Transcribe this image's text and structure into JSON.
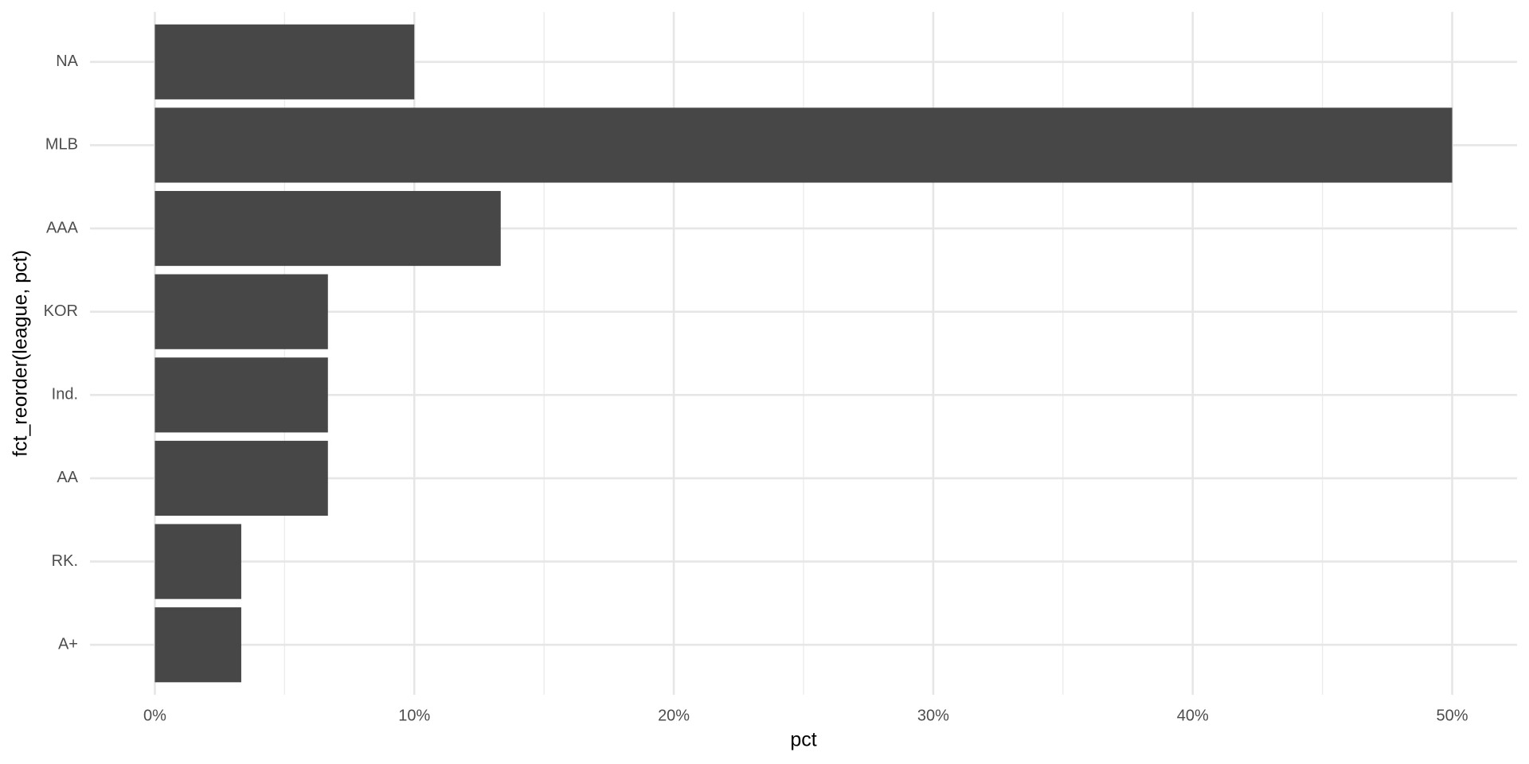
{
  "chart_data": {
    "type": "bar",
    "orientation": "horizontal",
    "categories": [
      "NA",
      "MLB",
      "AAA",
      "KOR",
      "Ind.",
      "AA",
      "RK.",
      "A+"
    ],
    "values": [
      10,
      50,
      13.33,
      6.67,
      6.67,
      6.67,
      3.33,
      3.33
    ],
    "color": "#474747",
    "x_label": "pct",
    "y_label": "fct_reorder(league, pct)",
    "xlim": [
      -2.5,
      52.5
    ],
    "xticks": [
      {
        "value": 0,
        "label": "0%"
      },
      {
        "value": 10,
        "label": "10%"
      },
      {
        "value": 20,
        "label": "20%"
      },
      {
        "value": 30,
        "label": "30%"
      },
      {
        "value": 40,
        "label": "40%"
      },
      {
        "value": 50,
        "label": "50%"
      }
    ],
    "x_minor_ticks": [
      5,
      15,
      25,
      35,
      45
    ],
    "grid": true
  }
}
